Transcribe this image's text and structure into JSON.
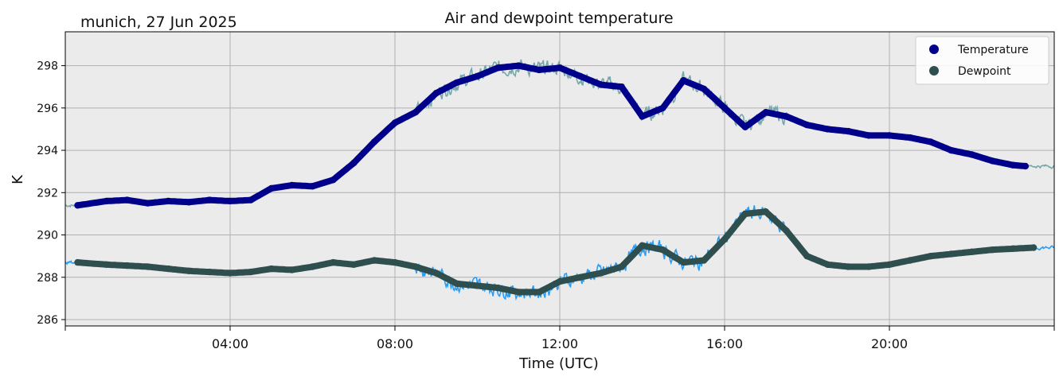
{
  "chart_data": {
    "type": "line",
    "title": "Air and dewpoint temperature",
    "subtitle": "munich, 27 Jun 2025",
    "xlabel": "Time (UTC)",
    "ylabel": "K",
    "xlim": [
      0,
      24
    ],
    "ylim": [
      285.7,
      299.6
    ],
    "grid": true,
    "legend_position": "top-right",
    "x_ticks": [
      4,
      8,
      12,
      16,
      20
    ],
    "x_tick_labels": [
      "04:00",
      "08:00",
      "12:00",
      "16:00",
      "20:00"
    ],
    "y_ticks": [
      286,
      288,
      290,
      292,
      294,
      296,
      298
    ],
    "y_tick_labels": [
      "286",
      "288",
      "290",
      "292",
      "294",
      "296",
      "298"
    ],
    "series": [
      {
        "name": "Temperature",
        "color": "#00008b",
        "raw_color": "#76a7ab",
        "x": [
          0.3,
          1,
          1.5,
          2,
          2.5,
          3,
          3.5,
          4,
          4.5,
          5,
          5.5,
          6,
          6.5,
          7,
          7.5,
          8,
          8.5,
          9,
          9.5,
          10,
          10.5,
          11,
          11.5,
          12,
          12.5,
          13,
          13.5,
          14,
          14.5,
          15,
          15.5,
          16,
          16.5,
          17,
          17.5,
          18,
          18.5,
          19,
          19.5,
          20,
          20.5,
          21,
          21.5,
          22,
          22.5,
          23,
          23.3
        ],
        "values": [
          291.4,
          291.6,
          291.65,
          291.5,
          291.6,
          291.55,
          291.65,
          291.6,
          291.65,
          292.2,
          292.35,
          292.3,
          292.6,
          293.4,
          294.4,
          295.3,
          295.8,
          296.7,
          297.2,
          297.5,
          297.9,
          298.0,
          297.8,
          297.9,
          297.5,
          297.1,
          297.0,
          295.6,
          296.0,
          297.3,
          296.9,
          296.0,
          295.1,
          295.8,
          295.6,
          295.2,
          295.0,
          294.9,
          294.7,
          294.7,
          294.6,
          294.4,
          294.0,
          293.8,
          293.5,
          293.3,
          293.25
        ]
      },
      {
        "name": "Dewpoint",
        "color": "#2f4f4f",
        "raw_color": "#2a9df4",
        "x": [
          0.3,
          1,
          1.5,
          2,
          2.5,
          3,
          3.5,
          4,
          4.5,
          5,
          5.5,
          6,
          6.5,
          7,
          7.5,
          8,
          8.5,
          9,
          9.5,
          10,
          10.5,
          11,
          11.5,
          12,
          12.5,
          13,
          13.5,
          14,
          14.5,
          15,
          15.5,
          16,
          16.5,
          17,
          17.5,
          18,
          18.5,
          19,
          19.5,
          20,
          20.5,
          21,
          21.5,
          22,
          22.5,
          23,
          23.5
        ],
        "values": [
          288.7,
          288.6,
          288.55,
          288.5,
          288.4,
          288.3,
          288.25,
          288.2,
          288.25,
          288.4,
          288.35,
          288.5,
          288.7,
          288.6,
          288.8,
          288.7,
          288.5,
          288.2,
          287.7,
          287.6,
          287.5,
          287.3,
          287.3,
          287.8,
          288.0,
          288.2,
          288.5,
          289.5,
          289.3,
          288.7,
          288.8,
          289.8,
          291.0,
          291.1,
          290.2,
          289.0,
          288.6,
          288.5,
          288.5,
          288.6,
          288.8,
          289.0,
          289.1,
          289.2,
          289.3,
          289.35,
          289.4
        ]
      }
    ]
  }
}
